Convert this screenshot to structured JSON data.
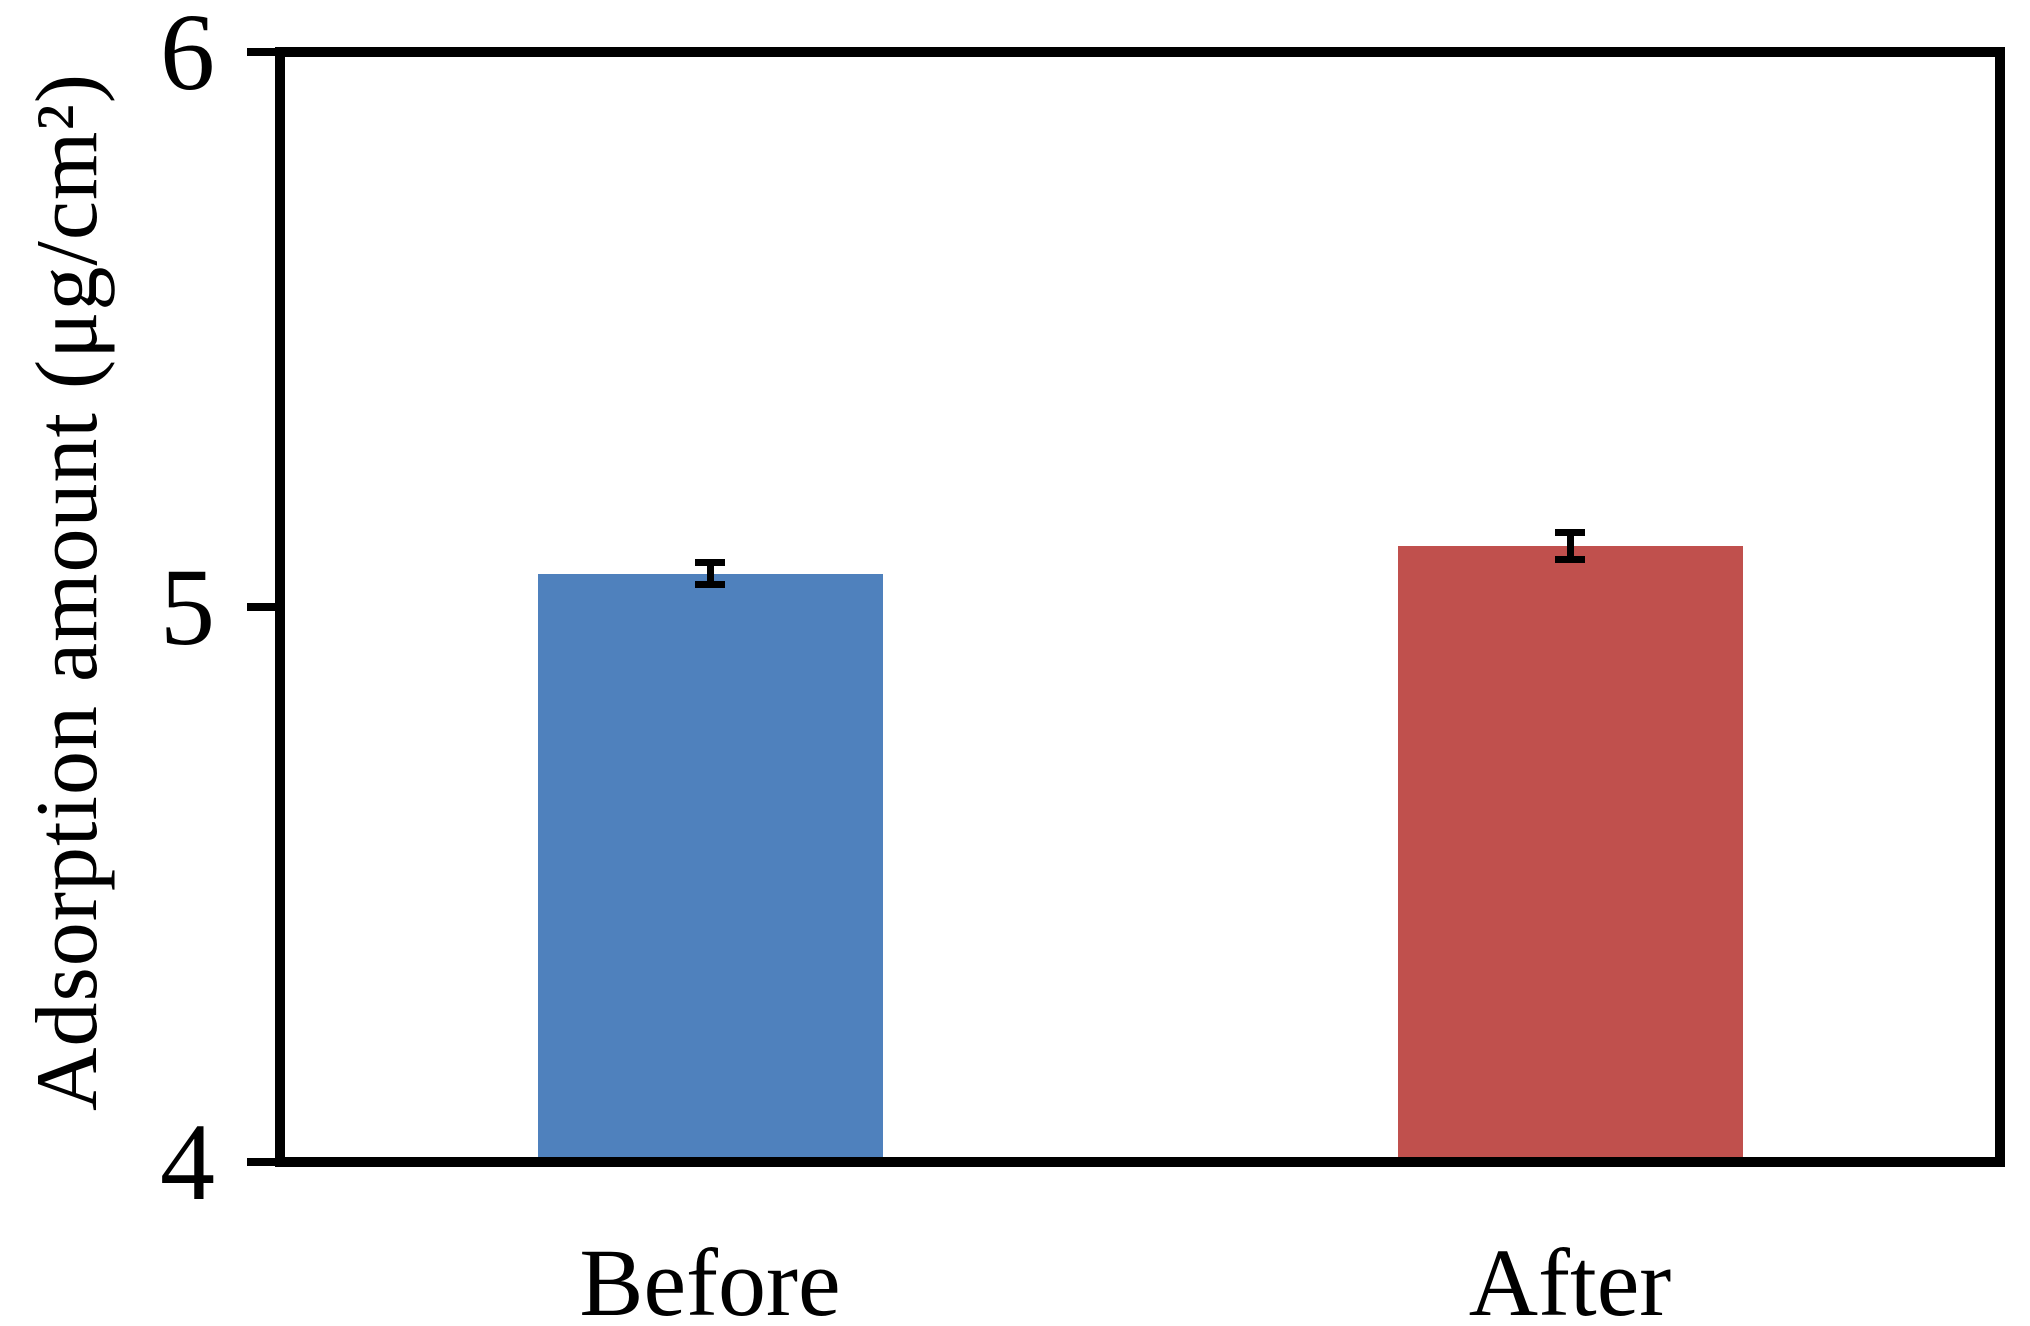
{
  "chart_data": {
    "type": "bar",
    "title": "",
    "categories": [
      "Before",
      "After"
    ],
    "values": [
      5.06,
      5.11
    ],
    "errors": [
      0.02,
      0.025
    ],
    "bar_colors": [
      "#4F81BD",
      "#C0504D"
    ],
    "error_bar_color": "#000000",
    "xlabel": "",
    "ylabel": "Adsorption amount (μg/cm²)",
    "ylim": [
      4,
      6
    ],
    "yticks": [
      6,
      5,
      4
    ],
    "grid": false,
    "legend": "none",
    "frame_color": "#000000",
    "background_color": "#FFFFFF"
  }
}
